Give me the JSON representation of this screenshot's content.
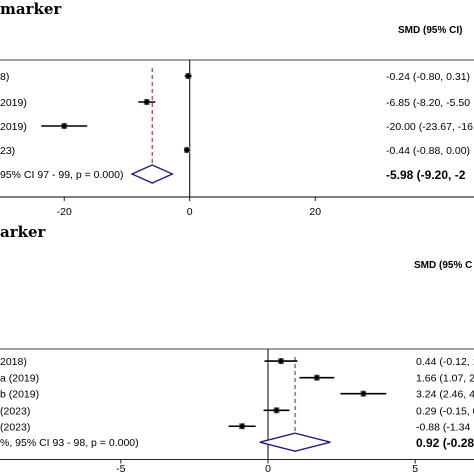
{
  "chart_data": [
    {
      "type": "forest",
      "title": "marker",
      "header": "SMD (95% CI)",
      "xlim": [
        -28,
        30
      ],
      "xticks": [
        -20,
        0,
        20
      ],
      "null_line": 0,
      "pooled_line": -5.98,
      "studies": [
        {
          "label": "8)",
          "smd": -0.24,
          "lo": -0.8,
          "hi": 0.31,
          "text": "-0.24 (-0.80, 0.31)"
        },
        {
          "label": "2019)",
          "smd": -6.85,
          "lo": -8.2,
          "hi": -5.5,
          "text": "-6.85 (-8.20, -5.50"
        },
        {
          "label": "2019)",
          "smd": -20.0,
          "lo": -23.67,
          "hi": -16.33,
          "text": "-20.00 (-23.67, -16"
        },
        {
          "label": "23)",
          "smd": -0.44,
          "lo": -0.88,
          "hi": 0.0,
          "text": "-0.44 (-0.88, 0.00)"
        }
      ],
      "overall": {
        "label": "95% CI 97 - 99, p = 0.000)",
        "smd": -5.98,
        "lo": -9.2,
        "hi": -2.76,
        "text": "-5.98 (-9.20, -2"
      }
    },
    {
      "type": "forest",
      "title": "arker",
      "header": "SMD (95% C",
      "xlim": [
        -7,
        7
      ],
      "xticks": [
        -5,
        0,
        5
      ],
      "null_line": 0,
      "pooled_line": 0.92,
      "studies": [
        {
          "label": "2018)",
          "smd": 0.44,
          "lo": -0.12,
          "hi": 1.0,
          "text": "0.44 (-0.12, 1"
        },
        {
          "label": "a (2019)",
          "smd": 1.66,
          "lo": 1.07,
          "hi": 2.25,
          "text": "1.66 (1.07, 2"
        },
        {
          "label": "b (2019)",
          "smd": 3.24,
          "lo": 2.46,
          "hi": 4.02,
          "text": "3.24 (2.46, 4"
        },
        {
          "label": "(2023)",
          "smd": 0.29,
          "lo": -0.15,
          "hi": 0.73,
          "text": "0.29 (-0.15, 0"
        },
        {
          "label": "(2023)",
          "smd": -0.88,
          "lo": -1.34,
          "hi": -0.42,
          "text": "-0.88 (-1.34"
        }
      ],
      "overall": {
        "label": "%, 95% CI 93 - 98, p = 0.000)",
        "smd": 0.92,
        "lo": -0.28,
        "hi": 2.12,
        "text": "0.92 (-0.28"
      }
    }
  ]
}
